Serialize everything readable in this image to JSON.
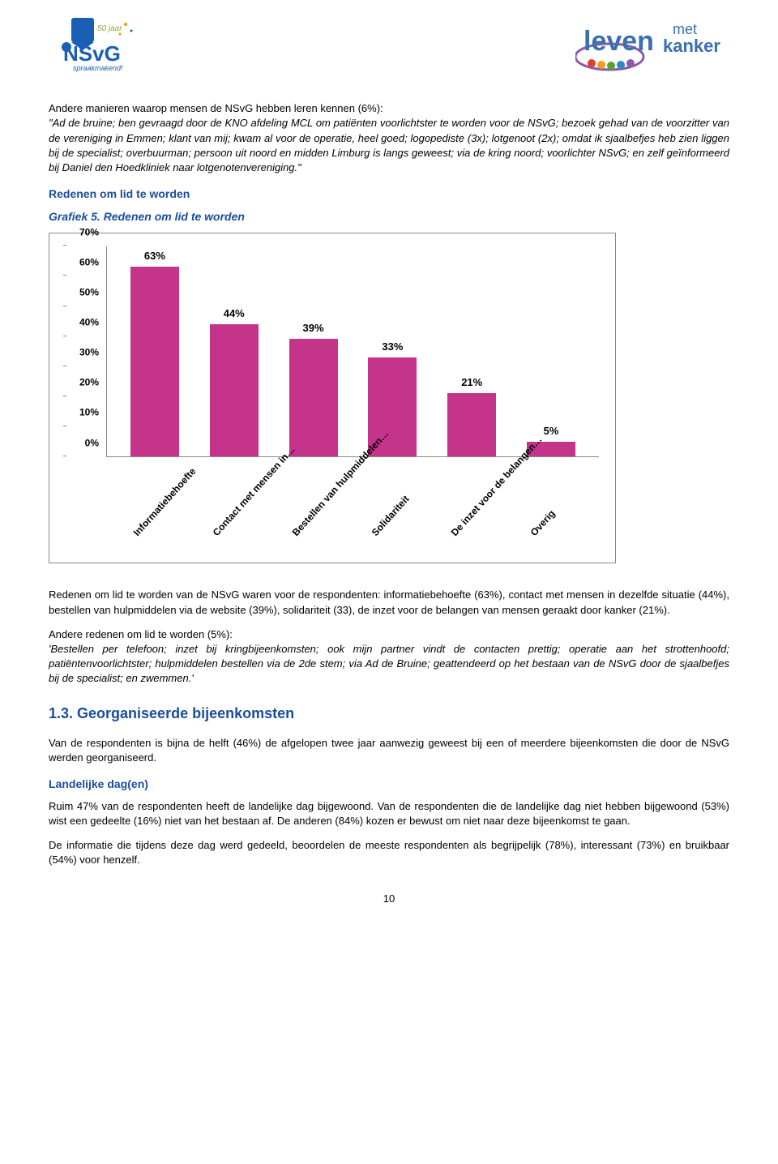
{
  "logos": {
    "left": {
      "text_top": "NSvG",
      "text_sub": "spraakmakend!",
      "badge": "50 jaar"
    },
    "right": {
      "main": "leven",
      "with": "met",
      "cancer": "kanker"
    }
  },
  "paragraphs": {
    "p1_intro": "Andere manieren waarop mensen de NSvG hebben leren kennen (6%):",
    "p1_quote": "\"Ad de bruine; ben gevraagd door de KNO afdeling MCL om patiënten voorlichtster te worden voor de NSvG; bezoek gehad van de voorzitter van de vereniging in Emmen; klant van mij; kwam al voor de operatie, heel goed; logopediste (3x); lotgenoot (2x); omdat ik sjaalbefjes heb zien liggen bij de specialist; overbuurman; persoon uit noord en midden Limburg is langs geweest; via de kring noord; voorlichter NSvG; en zelf geïnformeerd bij Daniel den Hoedkliniek naar lotgenotenvereniging.\"",
    "h_redenen": "Redenen om lid te worden",
    "h_grafiek5": "Grafiek 5. Redenen om lid te worden",
    "p2": "Redenen om lid te worden van de NSvG waren voor de respondenten: informatiebehoefte (63%), contact met mensen in dezelfde situatie (44%), bestellen van hulpmiddelen via de website (39%), solidariteit (33), de inzet voor de belangen van mensen geraakt door kanker (21%).",
    "p3_intro": "Andere redenen om lid te worden (5%):",
    "p3_quote": "'Bestellen per telefoon; inzet bij kringbijeenkomsten; ook mijn partner vindt de contacten prettig; operatie aan het strottenhoofd; patiëntenvoorlichtster; hulpmiddelen bestellen via de 2de stem; via Ad de Bruine; geattendeerd op het bestaan van de NSvG door de sjaalbefjes bij de specialist; en zwemmen.'",
    "h_section": "1.3. Georganiseerde bijeenkomsten",
    "p4": "Van de respondenten is bijna de helft (46%) de afgelopen twee jaar aanwezig geweest bij een of meerdere bijeenkomsten die door de NSvG werden georganiseerd.",
    "h_landelijke": "Landelijke dag(en)",
    "p5": "Ruim 47% van de respondenten heeft de landelijke dag bijgewoond. Van de respondenten die de landelijke dag niet hebben bijgewoond (53%) wist een gedeelte (16%) niet van het bestaan af. De anderen (84%) kozen er bewust om niet naar deze bijeenkomst te gaan.",
    "p6": "De informatie die tijdens deze dag werd gedeeld, beoordelen de meeste respondenten als begrijpelijk (78%), interessant (73%) en bruikbaar (54%) voor henzelf."
  },
  "chart": {
    "type": "bar",
    "ylim": [
      0,
      70
    ],
    "ytick_step": 10,
    "yticks": [
      "0%",
      "10%",
      "20%",
      "30%",
      "40%",
      "50%",
      "60%",
      "70%"
    ],
    "bar_color": "#c4348b",
    "border_color": "#888888",
    "background_color": "#ffffff",
    "label_fontsize": 13,
    "bars": [
      {
        "label": "Informatiebehoefte",
        "value": 63,
        "value_label": "63%"
      },
      {
        "label": "Contact met mensen in…",
        "value": 44,
        "value_label": "44%"
      },
      {
        "label": "Bestellen van hulpmiddelen…",
        "value": 39,
        "value_label": "39%"
      },
      {
        "label": "Solidariteit",
        "value": 33,
        "value_label": "33%"
      },
      {
        "label": "De inzet voor de belangen…",
        "value": 21,
        "value_label": "21%"
      },
      {
        "label": "Overig",
        "value": 5,
        "value_label": "5%"
      }
    ]
  },
  "page_number": "10"
}
